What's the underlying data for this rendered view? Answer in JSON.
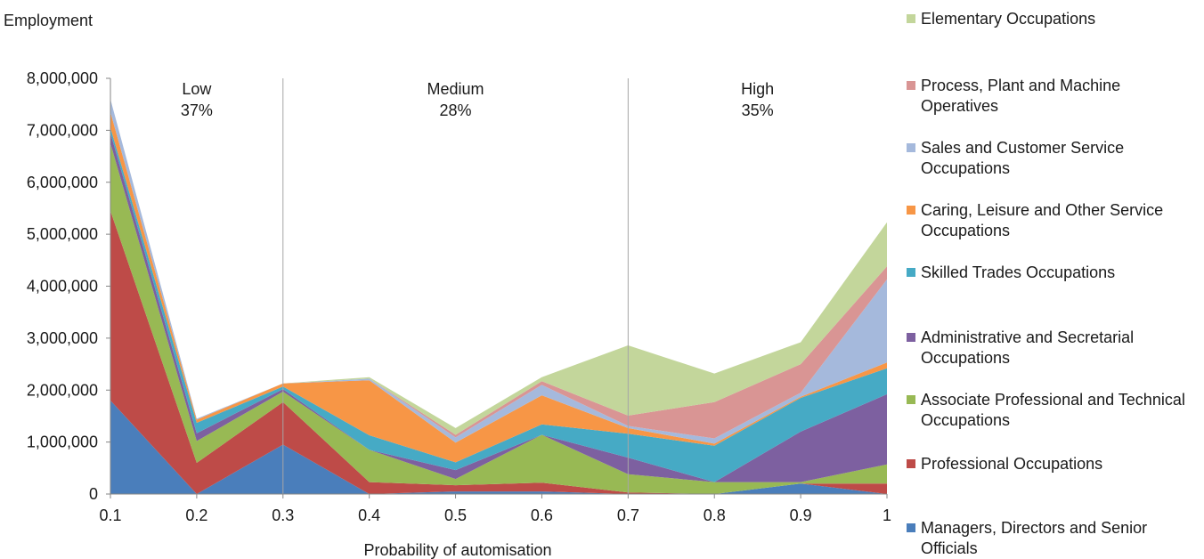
{
  "chart_data": {
    "type": "area",
    "stacked": true,
    "ylabel": "Employment",
    "xlabel": "Probability of automisation",
    "x": [
      0.1,
      0.2,
      0.3,
      0.4,
      0.5,
      0.6,
      0.7,
      0.8,
      0.9,
      1
    ],
    "x_tick_labels": [
      "0.1",
      "0.2",
      "0.3",
      "0.4",
      "0.5",
      "0.6",
      "0.7",
      "0.8",
      "0.9",
      "1"
    ],
    "ylim": [
      0,
      8000000
    ],
    "y_tick_labels": [
      "0",
      "1,000,000",
      "2,000,000",
      "3,000,000",
      "4,000,000",
      "5,000,000",
      "6,000,000",
      "7,000,000",
      "8,000,000"
    ],
    "y_ticks": [
      0,
      1000000,
      2000000,
      3000000,
      4000000,
      5000000,
      6000000,
      7000000,
      8000000
    ],
    "zones": [
      {
        "label": "Low",
        "share": "37%",
        "from": 0.1,
        "to": 0.3
      },
      {
        "label": "Medium",
        "share": "28%",
        "from": 0.3,
        "to": 0.7
      },
      {
        "label": "High",
        "share": "35%",
        "from": 0.7,
        "to": 1.0
      }
    ],
    "zone_dividers": [
      0.3,
      0.7
    ],
    "legend_position": "right",
    "series": [
      {
        "name": "Managers, Directors and Senior Officials",
        "color": "#4a7ebb",
        "values": [
          1800000,
          0,
          950000,
          0,
          50000,
          50000,
          0,
          0,
          200000,
          0
        ]
      },
      {
        "name": "Professional Occupations",
        "color": "#be4b48",
        "values": [
          3650000,
          600000,
          820000,
          230000,
          120000,
          170000,
          30000,
          0,
          0,
          200000
        ]
      },
      {
        "name": "Associate Professional and Technical Occupations",
        "color": "#98b954",
        "values": [
          1300000,
          420000,
          200000,
          620000,
          120000,
          920000,
          350000,
          230000,
          30000,
          370000
        ]
      },
      {
        "name": "Administrative and Secretarial Occupations",
        "color": "#7d60a0",
        "values": [
          200000,
          150000,
          50000,
          0,
          170000,
          0,
          320000,
          0,
          970000,
          1350000
        ]
      },
      {
        "name": "Skilled Trades Occupations",
        "color": "#46aac5",
        "values": [
          100000,
          200000,
          50000,
          280000,
          150000,
          200000,
          460000,
          700000,
          650000,
          500000
        ]
      },
      {
        "name": "Caring, Leisure and Other Service Occupations",
        "color": "#f79646",
        "values": [
          300000,
          60000,
          60000,
          1060000,
          380000,
          560000,
          110000,
          40000,
          20000,
          110000
        ]
      },
      {
        "name": "Sales and Customer Service Occupations",
        "color": "#a5b9dc",
        "values": [
          250000,
          20000,
          0,
          30000,
          100000,
          200000,
          40000,
          100000,
          80000,
          1600000
        ]
      },
      {
        "name": "Process, Plant and Machine Operatives",
        "color": "#d99594",
        "values": [
          0,
          0,
          0,
          0,
          50000,
          70000,
          200000,
          700000,
          550000,
          250000
        ]
      },
      {
        "name": "Elementary Occupations",
        "color": "#c3d69b",
        "values": [
          0,
          0,
          0,
          30000,
          130000,
          80000,
          1350000,
          550000,
          420000,
          850000
        ]
      }
    ]
  }
}
